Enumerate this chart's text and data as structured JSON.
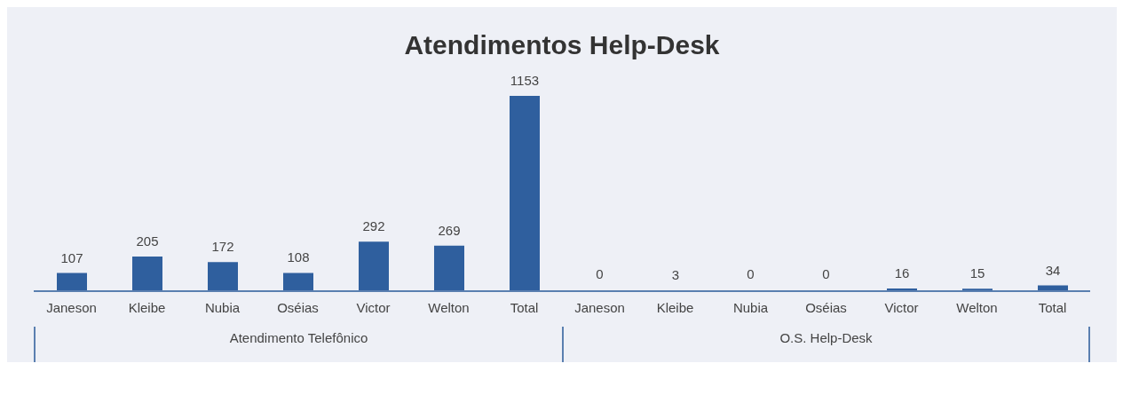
{
  "chart_data": {
    "type": "bar",
    "title": "Atendimentos Help-Desk",
    "categories": [
      "Janeson",
      "Kleibe",
      "Nubia",
      "Oséias",
      "Victor",
      "Welton",
      "Total",
      "Janeson",
      "Kleibe",
      "Nubia",
      "Oséias",
      "Victor",
      "Welton",
      "Total"
    ],
    "values": [
      107,
      205,
      172,
      108,
      292,
      269,
      1153,
      0,
      3,
      0,
      0,
      16,
      15,
      34
    ],
    "color": "#2f5f9e",
    "data_labels": true,
    "grid": false,
    "legend": false,
    "annotations": [
      "Atendimento Telefônico",
      "O.S. Help-Desk"
    ]
  }
}
